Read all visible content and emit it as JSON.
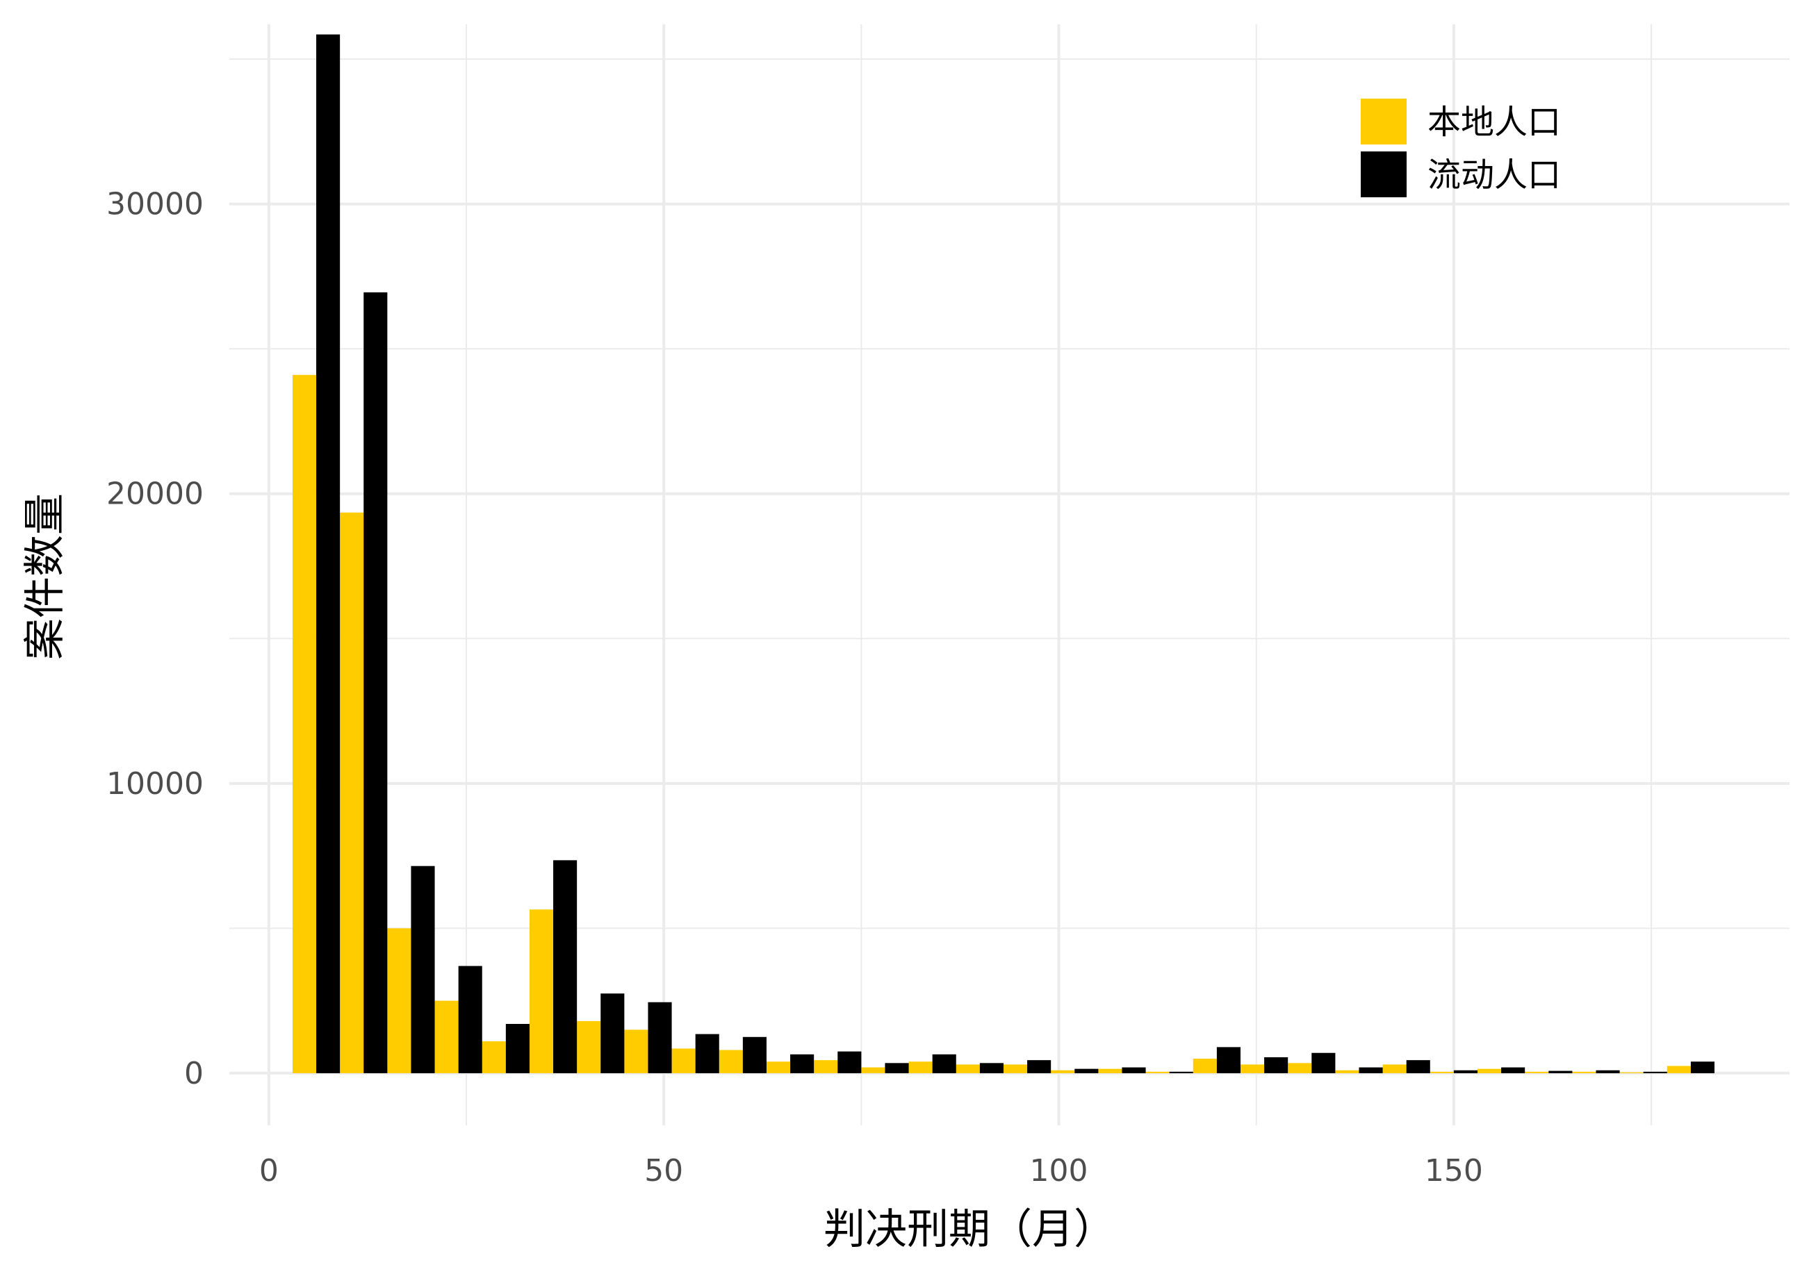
{
  "chart_data": {
    "type": "bar",
    "title": "",
    "xlabel": "判决刑期（月）",
    "ylabel": "案件数量",
    "xlim": [
      -5,
      192.5
    ],
    "ylim": [
      -1800,
      36200
    ],
    "x_ticks": [
      0,
      50,
      100,
      150
    ],
    "x_tick_labels": [
      "0",
      "50",
      "100",
      "150"
    ],
    "y_ticks": [
      0,
      10000,
      20000,
      30000
    ],
    "y_tick_labels": [
      "0",
      "10000",
      "20000",
      "30000"
    ],
    "grid": true,
    "legend_position": "top-right",
    "bin_centers": [
      6,
      12,
      18,
      24,
      30,
      36,
      42,
      48,
      54,
      60,
      66,
      72,
      78,
      84,
      90,
      96,
      102,
      108,
      114,
      120,
      126,
      132,
      138,
      144,
      150,
      156,
      162,
      168,
      174,
      180
    ],
    "series": [
      {
        "name": "本地人口",
        "color": "#FFCC00",
        "values": [
          24100,
          19350,
          5000,
          2500,
          1100,
          5650,
          1800,
          1500,
          850,
          800,
          400,
          450,
          200,
          400,
          300,
          300,
          100,
          150,
          50,
          500,
          300,
          350,
          100,
          300,
          50,
          150,
          50,
          50,
          30,
          250
        ]
      },
      {
        "name": "流动人口",
        "color": "#000000",
        "values": [
          35850,
          26950,
          7150,
          3700,
          1700,
          7350,
          2750,
          2450,
          1350,
          1250,
          650,
          750,
          350,
          650,
          350,
          450,
          150,
          200,
          50,
          900,
          550,
          700,
          200,
          450,
          100,
          200,
          80,
          100,
          50,
          400
        ]
      }
    ]
  }
}
